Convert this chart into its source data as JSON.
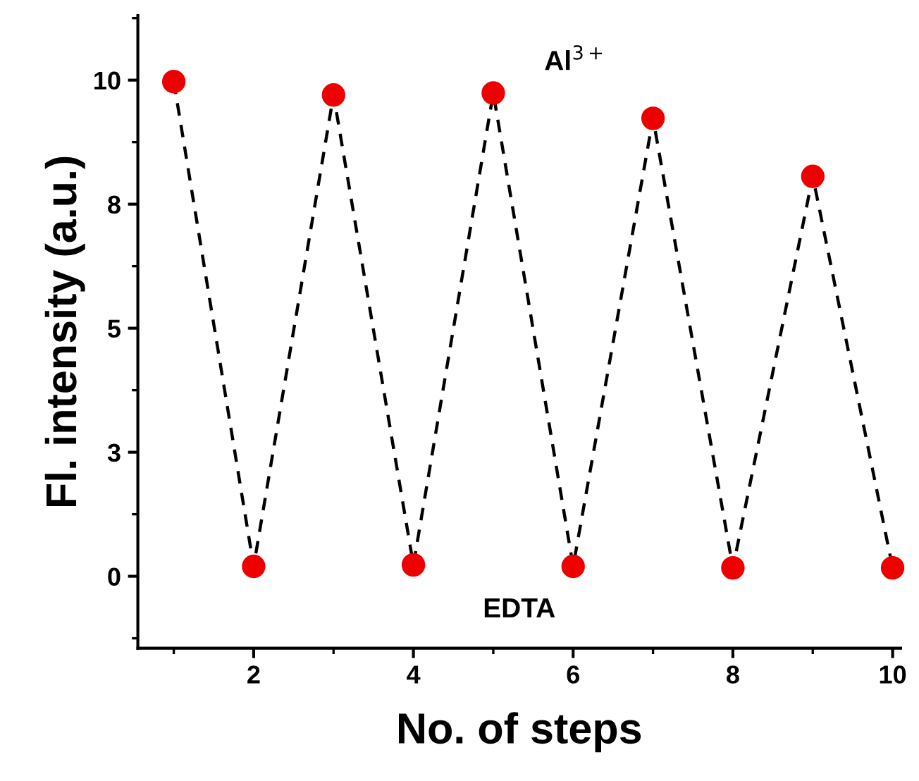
{
  "chart_data": {
    "type": "line",
    "xlabel": "No. of steps",
    "ylabel": "Fl. intensity (a.u.)",
    "x": [
      1,
      2,
      3,
      4,
      5,
      6,
      7,
      8,
      9,
      10
    ],
    "series": [
      {
        "color": "#ee0000",
        "values": [
          9.97,
          0.2,
          9.7,
          0.23,
          9.74,
          0.2,
          9.23,
          0.17,
          8.06,
          0.17
        ]
      }
    ],
    "marker": "circle",
    "line_style": "dashed",
    "xlim": [
      0.55,
      10.1
    ],
    "xticks": [
      2,
      4,
      6,
      8,
      10
    ],
    "ylim": [
      -1.45,
      11.3
    ],
    "yticks": [
      0,
      {
        "value": 2.5,
        "label": "3"
      },
      5,
      {
        "value": 7.5,
        "label": "8"
      },
      10
    ],
    "annotations": [
      "Al$^{3+}$",
      "EDTA"
    ],
    "grid": false,
    "legend": false
  }
}
